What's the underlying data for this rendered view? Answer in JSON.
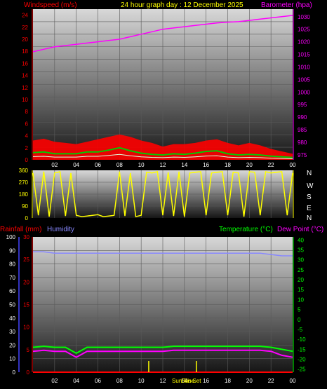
{
  "header": {
    "windspeed_title": "Windspeed (m/s)",
    "graph_title": "24 hour graph day : 12 December 2025",
    "barometer_title": "Barometer (hpa)"
  },
  "lower_header": {
    "rainfall_title": "Rainfall (mm)",
    "humidity_title": "Humidity",
    "temperature_title": "Temperature (°C)",
    "dewpoint_title": "Dew Point (°C)"
  },
  "compass_labels": [
    "N",
    "W",
    "S",
    "E",
    "N"
  ],
  "x_tick_labels": [
    "02",
    "04",
    "06",
    "08",
    "10",
    "12",
    "14",
    "16",
    "18",
    "20",
    "22",
    "00"
  ],
  "sun_labels": {
    "sunrise": "Sun Rise",
    "sunset": "Sun Set"
  },
  "colors": {
    "wind": "#ff0000",
    "gust_fill": "#ff0000",
    "avg_wind": "#00cc00",
    "wind_light": "#e0ffe0",
    "barometer": "#ff00ff",
    "direction": "#ffff00",
    "rain": "#ff0000",
    "humidity": "#8888ff",
    "temperature": "#00ff00",
    "dewpoint": "#ff00ff",
    "axis_red": "#ff0000",
    "axis_green": "#00ff00",
    "axis_blue": "#4444ff",
    "axis_white": "#ffffff"
  },
  "chart_data": [
    {
      "type": "line",
      "id": "wind_baro",
      "x_hours": [
        0,
        1,
        2,
        3,
        4,
        5,
        6,
        7,
        8,
        9,
        10,
        11,
        12,
        13,
        14,
        15,
        16,
        17,
        18,
        19,
        20,
        21,
        22,
        23,
        24
      ],
      "xticks": [
        "02",
        "04",
        "06",
        "08",
        "10",
        "12",
        "14",
        "16",
        "18",
        "20",
        "22",
        "00"
      ],
      "left_axis": {
        "label": "Windspeed (m/s)",
        "ticks": [
          0,
          2,
          4,
          6,
          8,
          10,
          12,
          14,
          16,
          18,
          20,
          22,
          24
        ],
        "ylim": [
          0,
          25
        ]
      },
      "right_axis": {
        "label": "Barometer (hpa)",
        "ticks": [
          975,
          980,
          985,
          990,
          995,
          1000,
          1005,
          1010,
          1015,
          1020,
          1025,
          1030
        ],
        "ylim": [
          973,
          1033
        ]
      },
      "series": [
        {
          "name": "Gust",
          "axis": "left",
          "values": [
            3.2,
            3.5,
            3.0,
            2.8,
            2.6,
            3.0,
            3.4,
            3.8,
            4.2,
            3.8,
            3.2,
            2.8,
            2.2,
            2.6,
            2.6,
            2.8,
            3.2,
            3.4,
            2.8,
            2.4,
            2.8,
            2.4,
            1.8,
            1.4,
            1.0
          ]
        },
        {
          "name": "Average",
          "axis": "left",
          "values": [
            1.2,
            1.3,
            1.0,
            1.0,
            1.0,
            1.3,
            1.3,
            1.6,
            2.0,
            1.5,
            1.1,
            0.9,
            0.8,
            1.0,
            0.9,
            1.1,
            1.4,
            1.5,
            1.0,
            0.8,
            0.9,
            0.8,
            0.6,
            0.5,
            0.4
          ]
        },
        {
          "name": "Barometer",
          "axis": "right",
          "values": [
            1016,
            1017,
            1018,
            1018.5,
            1019,
            1019.5,
            1020,
            1020.5,
            1021,
            1022,
            1023,
            1024,
            1025,
            1025.5,
            1026,
            1026.5,
            1027,
            1027.5,
            1027.8,
            1028,
            1028.5,
            1029,
            1029.5,
            1030,
            1030.5
          ]
        }
      ]
    },
    {
      "type": "line",
      "id": "wind_direction",
      "left_axis": {
        "ticks": [
          0,
          90,
          180,
          270,
          360
        ],
        "ylim": [
          0,
          360
        ]
      },
      "x_hours": [
        0,
        0.5,
        1,
        1.5,
        2,
        2.5,
        3,
        3.5,
        4,
        4.5,
        5,
        5.5,
        6,
        6.5,
        7,
        7.5,
        8,
        8.5,
        9,
        9.5,
        10,
        10.5,
        11,
        11.5,
        12,
        12.5,
        13,
        13.5,
        14,
        14.5,
        15,
        15.5,
        16,
        16.5,
        17,
        17.5,
        18,
        18.5,
        19,
        19.5,
        20,
        20.5,
        21,
        21.5,
        22,
        22.5,
        23,
        23.5,
        24
      ],
      "series": [
        {
          "name": "Direction",
          "values": [
            340,
            20,
            350,
            10,
            340,
            350,
            15,
            340,
            20,
            10,
            15,
            20,
            25,
            10,
            15,
            20,
            350,
            15,
            340,
            10,
            20,
            345,
            340,
            350,
            20,
            345,
            15,
            350,
            10,
            340,
            345,
            350,
            20,
            340,
            345,
            350,
            20,
            345,
            340,
            10,
            350,
            345,
            20,
            350,
            340,
            345,
            350,
            20,
            340
          ]
        }
      ]
    },
    {
      "type": "line",
      "id": "temp_humidity_rain",
      "x_hours": [
        0,
        1,
        2,
        3,
        4,
        5,
        6,
        7,
        8,
        9,
        10,
        11,
        12,
        13,
        14,
        15,
        16,
        17,
        18,
        19,
        20,
        21,
        22,
        23,
        24
      ],
      "axes": {
        "humidity": {
          "ticks": [
            0,
            10,
            20,
            30,
            40,
            50,
            60,
            70,
            80,
            90,
            100
          ],
          "ylim": [
            0,
            100
          ]
        },
        "rainfall": {
          "ticks": [
            0,
            5,
            10,
            15,
            20,
            25,
            30
          ],
          "ylim": [
            0,
            30
          ]
        },
        "temperature": {
          "ticks": [
            -25,
            -20,
            -15,
            -10,
            -5,
            0,
            5,
            10,
            15,
            20,
            25,
            30,
            35,
            40
          ],
          "ylim": [
            -26.5,
            41.5
          ]
        }
      },
      "series": [
        {
          "name": "Humidity",
          "axis": "humidity",
          "values": [
            89,
            89,
            88,
            88,
            88,
            88,
            88,
            88,
            88,
            88,
            88,
            88,
            88,
            88,
            88,
            88,
            88,
            88,
            88,
            88,
            88,
            88,
            87,
            86,
            86
          ]
        },
        {
          "name": "Temperature",
          "axis": "temperature",
          "values": [
            -14,
            -13.5,
            -14,
            -14,
            -17,
            -14,
            -14,
            -14,
            -14,
            -14,
            -14,
            -14,
            -14,
            -13.5,
            -13.5,
            -13.5,
            -13.5,
            -13.5,
            -13.5,
            -13.5,
            -13.5,
            -13.5,
            -14,
            -15,
            -16
          ]
        },
        {
          "name": "Dew Point",
          "axis": "temperature",
          "values": [
            -16,
            -15.5,
            -16,
            -16,
            -19,
            -16,
            -16,
            -16,
            -16,
            -16,
            -16,
            -16,
            -16,
            -15.5,
            -15.5,
            -15.5,
            -15.5,
            -15.5,
            -15.5,
            -15.5,
            -15.5,
            -15.5,
            -16,
            -18,
            -19
          ]
        },
        {
          "name": "Rainfall",
          "axis": "rainfall",
          "values": [
            0,
            0,
            0,
            0,
            0,
            0,
            0,
            0,
            0,
            0,
            0,
            0,
            0,
            0,
            0,
            0,
            0,
            0,
            0,
            0,
            0,
            0,
            0,
            0,
            0
          ]
        }
      ],
      "sunrise_hour": 10.7,
      "sunset_hour": 15.1
    }
  ]
}
